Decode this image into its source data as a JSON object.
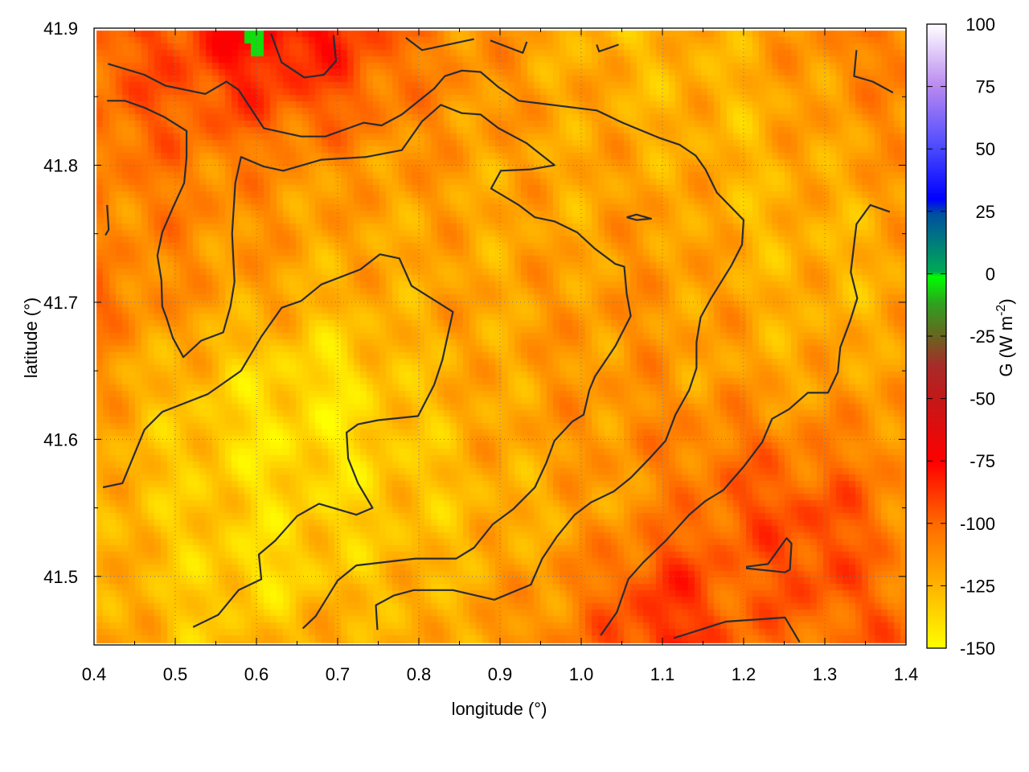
{
  "chart_data": {
    "type": "heatmap",
    "xlabel": "longitude (°)",
    "ylabel": "latitude (°)",
    "colorbar_label": "G (W m",
    "colorbar_label_sup": "-2",
    "colorbar_label_close": ")",
    "xlim": [
      0.4,
      1.4
    ],
    "ylim": [
      41.45,
      41.9
    ],
    "clim": [
      -150,
      100
    ],
    "grid": true,
    "x_ticks": [
      "0.4",
      "0.5",
      "0.6",
      "0.7",
      "0.8",
      "0.9",
      "1.0",
      "1.1",
      "1.2",
      "1.3",
      "1.4"
    ],
    "y_ticks": [
      "41.5",
      "41.6",
      "41.7",
      "41.8",
      "41.9"
    ],
    "colorbar_ticks": [
      "100",
      "75",
      "50",
      "25",
      "0",
      "-25",
      "-50",
      "-75",
      "-100",
      "-125",
      "-150"
    ],
    "colormap": [
      {
        "v": -150,
        "c": "#ffff00"
      },
      {
        "v": -125,
        "c": "#ffb400"
      },
      {
        "v": -100,
        "c": "#ff6a00"
      },
      {
        "v": -75,
        "c": "#ff0000"
      },
      {
        "v": -50,
        "c": "#c41818"
      },
      {
        "v": -37,
        "c": "#a82a2a"
      },
      {
        "v": -25,
        "c": "#6a6420"
      },
      {
        "v": -12,
        "c": "#30a020"
      },
      {
        "v": -1,
        "c": "#00ff00"
      },
      {
        "v": 1,
        "c": "#00aa55"
      },
      {
        "v": 24,
        "c": "#0050a0"
      },
      {
        "v": 30,
        "c": "#0000ff"
      },
      {
        "v": 50,
        "c": "#4848ff"
      },
      {
        "v": 75,
        "c": "#b888f0"
      },
      {
        "v": 100,
        "c": "#ffffff"
      }
    ],
    "grid_lon": [
      0.4,
      0.5,
      0.6,
      0.7,
      0.8,
      0.9,
      1.0,
      1.1,
      1.2,
      1.3,
      1.4
    ],
    "grid_lat": [
      41.9,
      41.85,
      41.8,
      41.75,
      41.7,
      41.65,
      41.6,
      41.55,
      41.5,
      41.45
    ],
    "values": [
      [
        -100,
        -92,
        -70,
        -82,
        -105,
        -115,
        -125,
        -125,
        -120,
        -110,
        -105
      ],
      [
        -100,
        -95,
        -90,
        -95,
        -110,
        -115,
        -120,
        -125,
        -125,
        -115,
        -110
      ],
      [
        -105,
        -105,
        -110,
        -115,
        -115,
        -120,
        -120,
        -120,
        -125,
        -120,
        -115
      ],
      [
        -110,
        -110,
        -115,
        -120,
        -120,
        -120,
        -120,
        -115,
        -125,
        -125,
        -120
      ],
      [
        -100,
        -115,
        -120,
        -125,
        -120,
        -120,
        -115,
        -115,
        -120,
        -125,
        -120
      ],
      [
        -115,
        -125,
        -135,
        -140,
        -125,
        -120,
        -115,
        -115,
        -120,
        -120,
        -115
      ],
      [
        -120,
        -130,
        -140,
        -140,
        -130,
        -120,
        -115,
        -110,
        -105,
        -110,
        -110
      ],
      [
        -125,
        -130,
        -135,
        -135,
        -130,
        -125,
        -120,
        -110,
        -95,
        -92,
        -110
      ],
      [
        -120,
        -130,
        -140,
        -130,
        -125,
        -120,
        -110,
        -88,
        -100,
        -90,
        -110
      ],
      [
        -115,
        -130,
        -125,
        -120,
        -125,
        -115,
        -105,
        -82,
        -100,
        -105,
        -95
      ]
    ],
    "spots": [
      {
        "lon": 0.6,
        "lat": 41.892,
        "value": -5
      }
    ],
    "contours": [
      [
        [
          0.411,
          41.565
        ],
        [
          0.435,
          41.568
        ],
        [
          0.462,
          41.607
        ],
        [
          0.484,
          41.62
        ],
        [
          0.54,
          41.633
        ],
        [
          0.581,
          41.65
        ],
        [
          0.606,
          41.675
        ],
        [
          0.631,
          41.696
        ],
        [
          0.655,
          41.701
        ],
        [
          0.68,
          41.713
        ],
        [
          0.728,
          41.724
        ],
        [
          0.752,
          41.735
        ],
        [
          0.776,
          41.732
        ],
        [
          0.791,
          41.712
        ],
        [
          0.842,
          41.693
        ],
        [
          0.829,
          41.658
        ],
        [
          0.819,
          41.64
        ],
        [
          0.799,
          41.617
        ],
        [
          0.75,
          41.614
        ],
        [
          0.725,
          41.611
        ],
        [
          0.711,
          41.605
        ],
        [
          0.713,
          41.586
        ],
        [
          0.725,
          41.568
        ],
        [
          0.743,
          41.55
        ],
        [
          0.723,
          41.545
        ],
        [
          0.677,
          41.553
        ],
        [
          0.65,
          41.544
        ],
        [
          0.623,
          41.526
        ],
        [
          0.603,
          41.516
        ],
        [
          0.606,
          41.498
        ],
        [
          0.578,
          41.49
        ],
        [
          0.553,
          41.472
        ],
        [
          0.522,
          41.463
        ]
      ],
      [
        [
          0.417,
          41.874
        ],
        [
          0.462,
          41.866
        ],
        [
          0.488,
          41.858
        ],
        [
          0.537,
          41.852
        ],
        [
          0.563,
          41.861
        ],
        [
          0.578,
          41.855
        ],
        [
          0.609,
          41.827
        ],
        [
          0.655,
          41.821
        ],
        [
          0.685,
          41.821
        ],
        [
          0.732,
          41.831
        ],
        [
          0.754,
          41.829
        ],
        [
          0.779,
          41.837
        ],
        [
          0.819,
          41.856
        ],
        [
          0.832,
          41.865
        ],
        [
          0.853,
          41.869
        ],
        [
          0.876,
          41.868
        ],
        [
          0.898,
          41.857
        ],
        [
          0.923,
          41.847
        ],
        [
          1.019,
          41.84
        ],
        [
          1.051,
          41.831
        ],
        [
          1.096,
          41.82
        ],
        [
          1.121,
          41.815
        ],
        [
          1.141,
          41.807
        ],
        [
          1.153,
          41.797
        ],
        [
          1.167,
          41.78
        ],
        [
          1.2,
          41.76
        ],
        [
          1.198,
          41.742
        ],
        [
          1.185,
          41.727
        ],
        [
          1.16,
          41.703
        ],
        [
          1.147,
          41.689
        ],
        [
          1.142,
          41.671
        ],
        [
          1.142,
          41.652
        ],
        [
          1.133,
          41.636
        ],
        [
          1.116,
          41.618
        ],
        [
          1.104,
          41.599
        ],
        [
          1.084,
          41.586
        ],
        [
          1.061,
          41.572
        ],
        [
          1.04,
          41.562
        ],
        [
          1.012,
          41.554
        ],
        [
          0.992,
          41.545
        ],
        [
          0.97,
          41.529
        ],
        [
          0.952,
          41.513
        ],
        [
          0.938,
          41.494
        ],
        [
          0.893,
          41.483
        ],
        [
          0.842,
          41.49
        ],
        [
          0.794,
          41.49
        ],
        [
          0.769,
          41.486
        ],
        [
          0.747,
          41.479
        ],
        [
          0.749,
          41.461
        ]
      ],
      [
        [
          0.416,
          41.847
        ],
        [
          0.438,
          41.847
        ],
        [
          0.462,
          41.842
        ],
        [
          0.487,
          41.835
        ],
        [
          0.514,
          41.825
        ],
        [
          0.514,
          41.806
        ],
        [
          0.511,
          41.787
        ],
        [
          0.497,
          41.769
        ],
        [
          0.484,
          41.751
        ],
        [
          0.478,
          41.734
        ],
        [
          0.483,
          41.716
        ],
        [
          0.484,
          41.697
        ],
        [
          0.489,
          41.689
        ],
        [
          0.497,
          41.674
        ],
        [
          0.51,
          41.66
        ],
        [
          0.532,
          41.672
        ],
        [
          0.559,
          41.678
        ],
        [
          0.568,
          41.697
        ],
        [
          0.573,
          41.715
        ],
        [
          0.57,
          41.75
        ],
        [
          0.574,
          41.787
        ],
        [
          0.581,
          41.806
        ],
        [
          0.609,
          41.799
        ],
        [
          0.633,
          41.796
        ],
        [
          0.68,
          41.804
        ],
        [
          0.735,
          41.806
        ],
        [
          0.779,
          41.811
        ],
        [
          0.804,
          41.832
        ],
        [
          0.827,
          41.844
        ],
        [
          0.853,
          41.838
        ],
        [
          0.876,
          41.837
        ],
        [
          0.898,
          41.827
        ],
        [
          0.933,
          41.816
        ],
        [
          0.967,
          41.8
        ],
        [
          0.938,
          41.797
        ],
        [
          0.901,
          41.796
        ],
        [
          0.889,
          41.783
        ],
        [
          0.923,
          41.771
        ],
        [
          0.943,
          41.762
        ],
        [
          0.967,
          41.759
        ],
        [
          0.995,
          41.751
        ],
        [
          1.017,
          41.739
        ],
        [
          1.042,
          41.728
        ],
        [
          1.053,
          41.726
        ],
        [
          1.056,
          41.706
        ],
        [
          1.061,
          41.69
        ],
        [
          1.042,
          41.668
        ],
        [
          1.017,
          41.646
        ],
        [
          1.01,
          41.636
        ],
        [
          1.003,
          41.618
        ],
        [
          0.989,
          41.613
        ],
        [
          0.967,
          41.599
        ],
        [
          0.957,
          41.583
        ],
        [
          0.943,
          41.565
        ],
        [
          0.916,
          41.549
        ],
        [
          0.891,
          41.538
        ],
        [
          0.868,
          41.521
        ],
        [
          0.846,
          41.513
        ],
        [
          0.796,
          41.513
        ],
        [
          0.723,
          41.508
        ],
        [
          0.7,
          41.497
        ],
        [
          0.673,
          41.471
        ],
        [
          0.657,
          41.462
        ]
      ],
      [
        [
          1.339,
          41.884
        ],
        [
          1.336,
          41.865
        ],
        [
          1.359,
          41.861
        ],
        [
          1.384,
          41.853
        ]
      ],
      [
        [
          1.38,
          41.766
        ],
        [
          1.356,
          41.771
        ],
        [
          1.339,
          41.757
        ],
        [
          1.332,
          41.722
        ],
        [
          1.34,
          41.703
        ],
        [
          1.331,
          41.686
        ],
        [
          1.319,
          41.667
        ],
        [
          1.316,
          41.649
        ],
        [
          1.304,
          41.634
        ],
        [
          1.279,
          41.634
        ],
        [
          1.256,
          41.622
        ],
        [
          1.235,
          41.615
        ],
        [
          1.223,
          41.598
        ],
        [
          1.2,
          41.58
        ],
        [
          1.175,
          41.563
        ],
        [
          1.153,
          41.555
        ],
        [
          1.133,
          41.545
        ],
        [
          1.104,
          41.526
        ],
        [
          1.076,
          41.51
        ],
        [
          1.058,
          41.498
        ],
        [
          1.044,
          41.474
        ],
        [
          1.024,
          41.457
        ]
      ],
      [
        [
          1.203,
          41.507
        ],
        [
          1.23,
          41.509
        ],
        [
          1.253,
          41.528
        ],
        [
          1.259,
          41.524
        ],
        [
          1.257,
          41.505
        ],
        [
          1.251,
          41.503
        ],
        [
          1.203,
          41.506
        ]
      ],
      [
        [
          1.114,
          41.455
        ],
        [
          1.146,
          41.461
        ],
        [
          1.178,
          41.467
        ],
        [
          1.251,
          41.47
        ],
        [
          1.269,
          41.452
        ]
      ],
      [
        [
          0.618,
          41.896
        ],
        [
          0.631,
          41.875
        ],
        [
          0.659,
          41.864
        ],
        [
          0.683,
          41.866
        ],
        [
          0.698,
          41.876
        ],
        [
          0.695,
          41.895
        ]
      ],
      [
        [
          0.784,
          41.893
        ],
        [
          0.804,
          41.884
        ],
        [
          0.868,
          41.892
        ]
      ],
      [
        [
          0.888,
          41.891
        ],
        [
          0.928,
          41.882
        ],
        [
          0.933,
          41.89
        ]
      ],
      [
        [
          1.019,
          41.888
        ],
        [
          1.022,
          41.883
        ],
        [
          1.046,
          41.888
        ]
      ],
      [
        [
          1.056,
          41.762
        ],
        [
          1.068,
          41.764
        ],
        [
          1.086,
          41.761
        ],
        [
          1.068,
          41.76
        ],
        [
          1.056,
          41.762
        ]
      ],
      [
        [
          0.416,
          41.771
        ],
        [
          0.418,
          41.753
        ],
        [
          0.414,
          41.749
        ]
      ]
    ],
    "contour_color": "#2b2b33"
  }
}
